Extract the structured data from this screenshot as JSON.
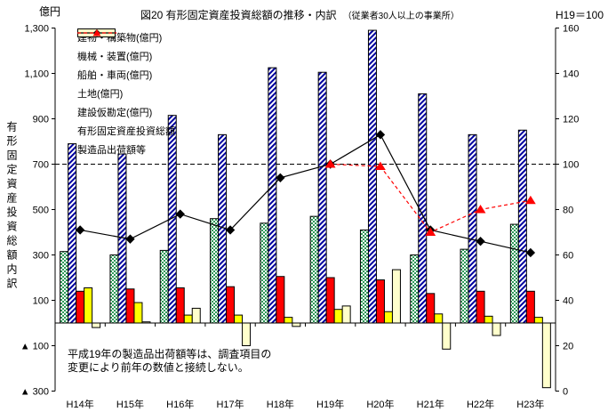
{
  "header": {
    "unit_label": "億円",
    "title": "図20 有形固定資産投資総額の推移・内訳",
    "subtitle": "（従業者30人以上の事業所）",
    "index_label": "H19＝100"
  },
  "note": {
    "line1": "平成19年の製造品出荷額等は、調査項目の",
    "line2": "変更により前年の数値と接続しない。"
  },
  "left_axis": {
    "title": "有形固定資産投資総額内訳",
    "min": -300,
    "max": 1300,
    "step": 200,
    "ticks": [
      "1,300",
      "1,100",
      "900",
      "700",
      "500",
      "300",
      "100",
      "▲ 100",
      "▲ 300"
    ]
  },
  "right_axis": {
    "min": 0,
    "max": 160,
    "step": 20,
    "ticks": [
      "160",
      "140",
      "120",
      "100",
      "80",
      "60",
      "40",
      "20",
      "0"
    ]
  },
  "chart_data": {
    "type": "bar",
    "combo": "bar+line, dual axis",
    "title": "図20 有形固定資産投資総額の推移・内訳",
    "xlabel": "",
    "ylabel_left": "有形固定資産投資総額内訳 (億円)",
    "ylabel_right": "H19＝100",
    "ylim_left": [
      -300,
      1300
    ],
    "ylim_right": [
      0,
      160
    ],
    "legend_position": "top-left inside plot",
    "grid": "single dashed reference line at left 700 / right 100",
    "categories": [
      "H14年",
      "H15年",
      "H16年",
      "H17年",
      "H18年",
      "H19年",
      "H20年",
      "H21年",
      "H22年",
      "H23年"
    ],
    "series": [
      {
        "key": "building",
        "name": "建物・構築物(億円)",
        "type": "bar",
        "axis": "left",
        "pattern": "checker",
        "color": "#2e9958",
        "values": [
          315,
          300,
          320,
          460,
          440,
          470,
          410,
          300,
          325,
          435
        ]
      },
      {
        "key": "machinery",
        "name": "機械・装置(億円)",
        "type": "bar",
        "axis": "left",
        "pattern": "diagonal",
        "color": "#0000a0",
        "values": [
          790,
          745,
          915,
          830,
          1125,
          1105,
          1290,
          1010,
          830,
          850
        ]
      },
      {
        "key": "vessels-vehicles",
        "name": "船舶・車両(億円)",
        "type": "bar",
        "axis": "left",
        "pattern": "solid",
        "color": "#ff0000",
        "values": [
          140,
          150,
          155,
          160,
          205,
          200,
          190,
          130,
          140,
          140
        ]
      },
      {
        "key": "land",
        "name": "土地(億円)",
        "type": "bar",
        "axis": "left",
        "pattern": "solid",
        "color": "#ffff00",
        "values": [
          155,
          90,
          35,
          35,
          25,
          60,
          50,
          40,
          30,
          25
        ]
      },
      {
        "key": "construction-in-progress",
        "name": "建設仮勘定(億円)",
        "type": "bar",
        "axis": "left",
        "pattern": "solid",
        "color": "#ffffcc",
        "values": [
          -20,
          5,
          65,
          -100,
          -15,
          75,
          235,
          -115,
          -55,
          -285
        ]
      },
      {
        "key": "total-investment",
        "name": "有形固定資産投資総額",
        "type": "line",
        "axis": "right",
        "color": "#000000",
        "marker": "diamond",
        "dash": "solid",
        "values": [
          71,
          67,
          78,
          71,
          94,
          100,
          113,
          71,
          66,
          61
        ]
      },
      {
        "key": "shipments",
        "name": "製造品出荷額等",
        "type": "line",
        "axis": "right",
        "color": "#ff0000",
        "marker": "triangle",
        "dash": "dashed",
        "values": [
          null,
          null,
          null,
          null,
          null,
          100,
          99,
          70,
          80,
          84
        ]
      }
    ],
    "reference_line": {
      "left_value": 700,
      "right_value": 100,
      "style": "dashed",
      "color": "#000000"
    }
  }
}
